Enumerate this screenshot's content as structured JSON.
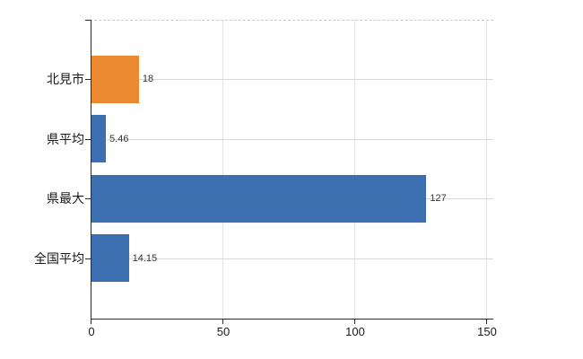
{
  "chart": {
    "background": "#ffffff",
    "axis_color": "#2b2b2b",
    "vertical_grid_color": "#e3e3e3",
    "horizontal_grid_color": "#d6d9d6",
    "top_border_color": "#c9c9c9",
    "category_label_color": "#1a1a1a",
    "value_label_color": "#333333",
    "highlight_color": "#eb8a31",
    "default_bar_color": "#3b6fb0"
  },
  "chart_data": {
    "type": "bar",
    "orientation": "horizontal",
    "title": "",
    "categories": [
      "北見市",
      "県平均",
      "県最大",
      "全国平均"
    ],
    "values": [
      18,
      5.46,
      127,
      14.15
    ],
    "value_labels": [
      "18",
      "5.46",
      "127",
      "14.15"
    ],
    "series_colors": [
      "#eb8a31",
      "#3b6fb0",
      "#3b6fb0",
      "#3b6fb0"
    ],
    "x_ticks": [
      0,
      50,
      100,
      150
    ],
    "x_tick_labels": [
      "0",
      "50",
      "100",
      "150"
    ],
    "xlim": [
      0,
      152.7
    ],
    "grid": "on",
    "legend": "none"
  }
}
